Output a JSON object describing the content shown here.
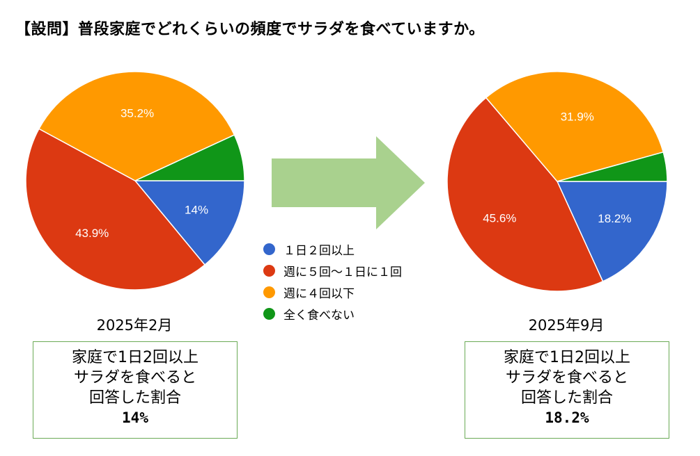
{
  "title": "【設問】普段家庭でどれくらいの頻度でサラダを食べていますか。",
  "colors": [
    "#3366cc",
    "#dc3912",
    "#ff9900",
    "#109618"
  ],
  "chart_data": [
    {
      "type": "pie",
      "title": "2025年2月",
      "categories": [
        "１日２回以上",
        "週に５回～１日に１回",
        "週に４回以下",
        "全く食べない"
      ],
      "values": [
        14,
        43.9,
        35.2,
        6.9
      ],
      "labels": [
        "14%",
        "43.9%",
        "35.2%",
        ""
      ]
    },
    {
      "type": "pie",
      "title": "2025年9月",
      "categories": [
        "１日２回以上",
        "週に５回～１日に１回",
        "週に４回以下",
        "全く食べない"
      ],
      "values": [
        18.2,
        45.6,
        31.9,
        4.3
      ],
      "labels": [
        "18.2%",
        "45.6%",
        "31.9%",
        ""
      ]
    }
  ],
  "legend": [
    "１日２回以上",
    "週に５回～１日に１回",
    "週に４回以下",
    "全く食べない"
  ],
  "summary": [
    {
      "lines": [
        "家庭で1日2回以上",
        "サラダを食べると",
        "回答した割合"
      ],
      "value": "14%"
    },
    {
      "lines": [
        "家庭で1日2回以上",
        "サラダを食べると",
        "回答した割合"
      ],
      "value": "18.2%"
    }
  ]
}
